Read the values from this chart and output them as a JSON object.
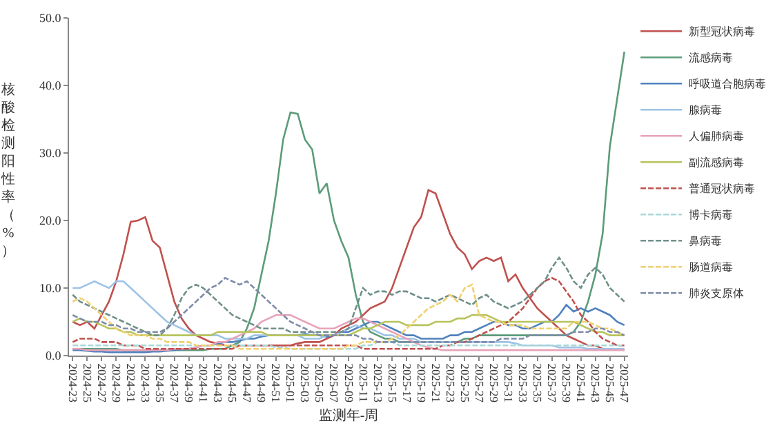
{
  "chart_data": {
    "type": "line",
    "xlabel": "监测年-周",
    "ylabel": "核酸检测阳性率（%）",
    "categories": [
      "2024-23",
      null,
      "2024-25",
      null,
      "2024-27",
      null,
      "2024-29",
      null,
      "2024-31",
      null,
      "2024-33",
      null,
      "2024-35",
      null,
      "2024-37",
      null,
      "2024-39",
      null,
      "2024-41",
      null,
      "2024-43",
      null,
      "2024-45",
      null,
      "2024-47",
      null,
      "2024-49",
      null,
      "2024-51",
      null,
      "2025-01",
      null,
      "2025-03",
      null,
      "2025-05",
      null,
      "2025-07",
      null,
      "2025-09",
      null,
      "2025-11",
      null,
      "2025-13",
      null,
      "2025-15",
      null,
      "2025-17",
      null,
      "2025-19",
      null,
      "2025-21",
      null,
      "2025-23",
      null,
      "2025-25",
      null,
      "2025-27",
      null,
      "2025-29",
      null,
      "2025-31",
      null,
      "2025-33",
      null,
      "2025-35",
      null,
      "2025-37",
      null,
      "2025-39",
      null,
      "2025-41",
      null,
      "2025-43",
      null,
      "2025-45",
      null,
      "2025-47"
    ],
    "ylim": [
      0,
      50
    ],
    "yticks": [
      {
        "value": 0,
        "label": "0.0"
      },
      {
        "value": 10,
        "label": "10.0"
      },
      {
        "value": 20,
        "label": "20.0"
      },
      {
        "value": 30,
        "label": "30.0"
      },
      {
        "value": 40,
        "label": "40.0"
      },
      {
        "value": 50,
        "label": "50.0"
      }
    ],
    "legend": "right",
    "marker": "none",
    "series": [
      {
        "name": "新型冠状病毒",
        "color": "#c0504d",
        "line_style": "solid",
        "values": [
          5,
          4.5,
          5,
          4,
          6,
          8,
          11,
          15,
          19.8,
          20,
          20.5,
          17,
          16,
          12,
          8,
          5.5,
          4,
          3,
          2.5,
          2,
          1.8,
          1.5,
          1.5,
          1.5,
          1.5,
          1.5,
          1.5,
          1.5,
          1.5,
          1.5,
          1.5,
          1.8,
          2,
          2,
          2,
          2.5,
          3,
          4,
          4.5,
          5,
          6,
          7,
          7.5,
          8,
          10,
          13,
          16,
          19,
          20.5,
          24.5,
          24,
          21,
          18,
          16,
          15,
          12.8,
          14,
          14.5,
          14,
          14.5,
          11,
          12,
          10,
          8.5,
          7,
          6,
          5,
          4,
          3,
          2.5,
          2,
          1.5,
          1.5,
          1,
          1,
          1,
          0.8
        ]
      },
      {
        "name": "流感病毒",
        "color": "#5b9b7a",
        "line_style": "solid",
        "values": [
          1,
          1,
          1,
          1,
          1,
          1,
          1,
          0.8,
          0.8,
          0.8,
          0.8,
          0.8,
          0.8,
          0.8,
          0.8,
          0.8,
          0.8,
          0.8,
          0.8,
          1,
          1,
          1,
          1.5,
          2,
          4,
          7,
          12,
          17,
          24,
          32,
          36,
          35.8,
          32,
          30.5,
          24,
          25.5,
          20,
          17,
          14.5,
          9,
          5,
          3.5,
          3,
          2.5,
          2.5,
          2,
          2,
          2,
          2,
          2,
          2,
          2,
          2,
          2,
          2.5,
          2.5,
          3,
          3,
          3,
          3,
          3,
          3,
          3,
          3,
          3,
          3,
          3,
          3,
          3,
          3.5,
          5,
          8,
          12,
          18,
          31,
          38,
          45
        ]
      },
      {
        "name": "呼吸道合胞病毒",
        "color": "#4f81bd",
        "line_style": "solid",
        "values": [
          0.8,
          0.8,
          0.7,
          0.6,
          0.6,
          0.5,
          0.5,
          0.5,
          0.5,
          0.5,
          0.5,
          0.6,
          0.6,
          0.7,
          0.8,
          0.9,
          1,
          1.2,
          1.5,
          1.5,
          1.8,
          2,
          2,
          2.2,
          2.5,
          2.5,
          2.8,
          3,
          3,
          3,
          3,
          3,
          3.2,
          3,
          3,
          2.8,
          3,
          3.5,
          3.5,
          4,
          4.5,
          5,
          5,
          4.5,
          4,
          3.5,
          3,
          3,
          2.5,
          2.5,
          2.5,
          2.5,
          3,
          3,
          3.5,
          3.5,
          4,
          4.5,
          5,
          5,
          4.5,
          4.5,
          4,
          4,
          4.5,
          5,
          5,
          6,
          7.5,
          6.5,
          7,
          6.5,
          7,
          6.5,
          6,
          5,
          4.5
        ]
      },
      {
        "name": "腺病毒",
        "color": "#9dc3e6",
        "line_style": "solid",
        "values": [
          10,
          10,
          10.5,
          11,
          10.5,
          10,
          11,
          11,
          10,
          9,
          8,
          7,
          6,
          5,
          4.5,
          4,
          3.5,
          3,
          3,
          3,
          3,
          2.5,
          2.5,
          2.5,
          2.5,
          3,
          3,
          3,
          3,
          3,
          3,
          3,
          2.5,
          2.5,
          2.5,
          3,
          3,
          3.5,
          4,
          4.5,
          4,
          4,
          3.5,
          3,
          3,
          2.5,
          2.5,
          2.5,
          2,
          2,
          2,
          2,
          2,
          2,
          2,
          2,
          2,
          2,
          2,
          2,
          2,
          1.8,
          1.5,
          1.5,
          1.5,
          1.5,
          1.5,
          1.2,
          1.2,
          1.2,
          1.2,
          1,
          1,
          1,
          1,
          1,
          1
        ]
      },
      {
        "name": "人偏肺病毒",
        "color": "#e8a2b8",
        "line_style": "solid",
        "values": [
          1,
          1,
          0.8,
          0.8,
          0.8,
          0.8,
          0.8,
          0.8,
          0.8,
          0.8,
          0.8,
          0.8,
          0.8,
          0.8,
          1,
          1,
          1,
          1.2,
          1.5,
          1.5,
          2,
          2,
          2.5,
          3,
          3.5,
          4,
          5,
          5.5,
          6,
          6,
          6,
          5.5,
          5,
          4.5,
          4,
          4,
          4,
          4.5,
          5,
          5.5,
          5.5,
          5,
          4.5,
          4,
          3.5,
          3,
          2.5,
          2,
          1.5,
          1.2,
          1,
          0.8,
          0.8,
          0.8,
          0.8,
          0.8,
          0.8,
          0.8,
          0.8,
          0.8,
          0.8,
          0.8,
          0.8,
          0.8,
          0.8,
          0.8,
          0.8,
          0.8,
          0.8,
          0.8,
          0.8,
          0.8,
          0.8,
          0.8,
          0.8,
          0.8,
          0.8
        ]
      },
      {
        "name": "副流感病毒",
        "color": "#b8c35a",
        "line_style": "solid",
        "values": [
          5,
          5.5,
          5,
          5,
          4.5,
          4,
          4,
          3.5,
          3.5,
          3,
          3,
          3,
          3,
          3,
          3,
          3,
          3,
          3,
          3,
          3,
          3.5,
          3.5,
          3.5,
          3.5,
          3.5,
          3.5,
          3.5,
          3,
          3,
          3,
          3,
          3,
          3,
          3,
          3,
          3,
          3,
          3,
          3,
          3.5,
          4,
          4,
          4.5,
          5,
          5,
          5,
          4.5,
          4.5,
          4.5,
          4.5,
          5,
          5,
          5,
          5.5,
          5.5,
          6,
          6,
          6,
          5.5,
          5,
          5,
          5,
          5,
          5,
          5,
          5,
          5,
          5,
          5,
          5,
          4.5,
          4,
          3.5,
          3.5,
          3,
          3,
          3
        ]
      },
      {
        "name": "普通冠状病毒",
        "color": "#c0504d",
        "line_style": "dashed",
        "values": [
          2,
          2.5,
          2.5,
          2.5,
          2,
          2,
          2,
          1.5,
          1.5,
          1.5,
          1,
          1,
          1,
          1,
          1,
          1,
          1,
          1,
          1,
          1,
          1,
          1,
          1,
          1.5,
          1.5,
          1.5,
          1.5,
          1.5,
          1.5,
          1.5,
          1.5,
          1.5,
          1.5,
          1.5,
          1.5,
          1.5,
          1.5,
          1.5,
          1.5,
          1.5,
          1,
          1,
          1,
          1,
          1,
          1,
          1,
          1,
          1,
          1,
          1,
          1.5,
          1.5,
          2,
          2,
          2.5,
          3,
          3.5,
          4,
          4.5,
          5,
          6,
          7,
          8.5,
          10,
          11,
          11.5,
          11,
          9.5,
          8,
          6,
          5,
          3.5,
          2.5,
          2,
          1.5,
          1.5
        ]
      },
      {
        "name": "博卡病毒",
        "color": "#a8d8d8",
        "line_style": "dashed",
        "values": [
          1.5,
          1.5,
          1.5,
          1.5,
          1.5,
          1.5,
          1.5,
          1.5,
          1.5,
          1.5,
          1.5,
          1.5,
          1.5,
          1.5,
          1.5,
          1.5,
          1.5,
          1.5,
          1.5,
          1.5,
          1.5,
          1.5,
          1.5,
          1.5,
          1.5,
          1.5,
          1.5,
          1.5,
          1.2,
          1.2,
          1,
          1,
          1,
          1,
          1,
          1,
          1,
          1,
          1,
          1,
          1.5,
          1.5,
          2,
          2,
          2,
          1.5,
          1.5,
          1.5,
          1.5,
          1.5,
          1.5,
          1.5,
          1.5,
          1.5,
          1.5,
          1.5,
          1.5,
          1.5,
          1.5,
          1.5,
          1.5,
          1.5,
          1.5,
          1.5,
          1.5,
          1.5,
          1.5,
          1.5,
          1.5,
          1.5,
          1.5,
          1.5,
          1.5,
          1.5,
          1.5,
          1.5,
          1.5
        ]
      },
      {
        "name": "鼻病毒",
        "color": "#6f8f8a",
        "line_style": "dashed",
        "values": [
          9,
          8,
          7.5,
          7,
          6.5,
          6,
          5.5,
          5,
          4.5,
          4,
          3.5,
          3,
          3,
          4,
          6,
          8.5,
          10,
          10.5,
          10,
          9,
          8,
          7,
          6,
          5.5,
          5,
          4.5,
          4,
          4,
          4,
          4,
          3.5,
          3.5,
          3.5,
          3.5,
          3.5,
          3.5,
          3.5,
          3.5,
          4,
          7,
          10,
          9,
          9.5,
          9.5,
          9,
          9.5,
          9.5,
          9,
          8.5,
          8.5,
          8,
          8.5,
          9,
          8.5,
          8,
          7.5,
          8.5,
          9,
          8,
          7.5,
          7,
          7.5,
          8,
          9,
          10,
          11,
          13,
          14.5,
          13,
          11,
          10,
          12,
          13,
          12,
          10,
          9,
          8
        ]
      },
      {
        "name": "肠道病毒",
        "color": "#f0d070",
        "line_style": "dashed",
        "values": [
          8,
          8.5,
          8,
          7,
          6,
          5,
          4,
          3.5,
          3,
          3,
          3,
          2.5,
          2.5,
          2,
          2,
          2,
          2,
          1.5,
          1.5,
          1.5,
          1.5,
          1.5,
          1.5,
          1,
          1,
          1,
          1,
          1,
          1,
          1,
          1,
          1,
          1,
          1,
          1,
          1,
          1,
          1,
          1.5,
          1.5,
          2,
          2,
          2,
          2,
          2.5,
          3,
          4,
          5,
          6,
          7,
          7.5,
          8,
          9,
          8,
          10,
          10.5,
          6,
          5.5,
          5,
          5,
          4.5,
          4.5,
          4.5,
          4,
          4,
          4,
          4,
          4,
          4,
          5,
          5,
          5,
          4.5,
          4,
          4,
          3.5,
          3
        ]
      },
      {
        "name": "肺炎支原体",
        "color": "#7f8ca8",
        "line_style": "dashed",
        "values": [
          6,
          5.5,
          5,
          5,
          5,
          4.5,
          4.5,
          4,
          4,
          3.5,
          3.5,
          3.5,
          3.5,
          4,
          5,
          6,
          7,
          8,
          9,
          10,
          10.5,
          11.5,
          11,
          10.5,
          11,
          10,
          9,
          8,
          7,
          6,
          5,
          4.5,
          4,
          3.5,
          3,
          3,
          3,
          3,
          3,
          3,
          2.5,
          2.5,
          2,
          2,
          2,
          2,
          2,
          2,
          2,
          2,
          2,
          2,
          2,
          2,
          2,
          2,
          2,
          2,
          2,
          2.5,
          2.5,
          2.5,
          2.5,
          3,
          3,
          3,
          3,
          3,
          3,
          3.5,
          3.5,
          3.5,
          4,
          4,
          3.5,
          3.5,
          3
        ]
      }
    ]
  }
}
